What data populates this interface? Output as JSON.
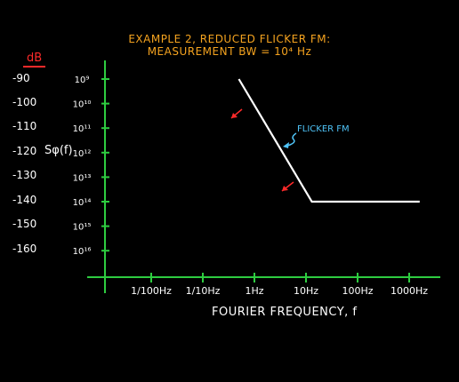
{
  "chart_data": {
    "type": "line",
    "title": "EXAMPLE 2, REDUCED FLICKER FM:",
    "subtitle": "MEASUREMENT BW = 10⁴ Hz",
    "xlabel": "FOURIER FREQUENCY, f",
    "ylabel": "Sφ(f)",
    "x_scale": "log",
    "x_ticks": [
      "1/100Hz",
      "1/10Hz",
      "1Hz",
      "10Hz",
      "100Hz",
      "1000Hz"
    ],
    "x_tick_values": [
      0.01,
      0.1,
      1,
      10,
      100,
      1000
    ],
    "y_scale": "log",
    "y_tick_labels": [
      "10⁹",
      "10¹⁰",
      "10¹¹",
      "10¹²",
      "10¹³",
      "10¹⁴",
      "10¹⁵",
      "10¹⁶"
    ],
    "db_unit": "dB",
    "db_labels": [
      "-90",
      "-100",
      "-110",
      "-120",
      "-130",
      "-140",
      "-150",
      "-160"
    ],
    "db_values": [
      -90,
      -100,
      -110,
      -120,
      -130,
      -140,
      -150,
      -160
    ],
    "series": [
      {
        "values_x": [
          0.5,
          13,
          1600
        ],
        "values_db": [
          -90,
          -140,
          -140
        ]
      }
    ],
    "annotations": [
      {
        "text": "FLICKER FM",
        "color": "#4fc3f7"
      }
    ],
    "colors": {
      "title": "#f5a31f",
      "axes": "#2ecc40",
      "arrow": "#ff2a2a",
      "annotation": "#4fc3f7",
      "line": "#ffffff"
    }
  }
}
